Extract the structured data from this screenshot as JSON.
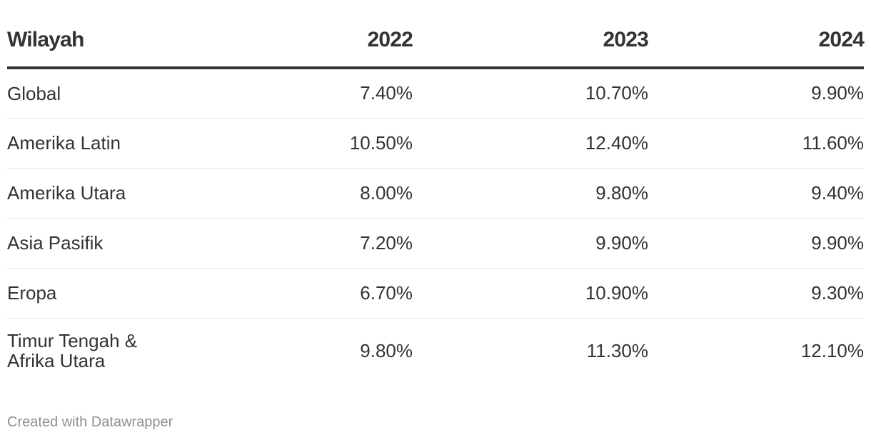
{
  "chart_data": {
    "type": "table",
    "columns": [
      "Wilayah",
      "2022",
      "2023",
      "2024"
    ],
    "rows": [
      {
        "region": "Global",
        "values": [
          "7.40%",
          "10.70%",
          "9.90%"
        ]
      },
      {
        "region": "Amerika Latin",
        "values": [
          "10.50%",
          "12.40%",
          "11.60%"
        ]
      },
      {
        "region": "Amerika Utara",
        "values": [
          "8.00%",
          "9.80%",
          "9.40%"
        ]
      },
      {
        "region": "Asia Pasifik",
        "values": [
          "7.20%",
          "9.90%",
          "9.90%"
        ]
      },
      {
        "region": "Eropa",
        "values": [
          "6.70%",
          "10.90%",
          "9.30%"
        ]
      },
      {
        "region": "Timur Tengah & Afrika Utara",
        "values": [
          "9.80%",
          "11.30%",
          "12.10%"
        ]
      }
    ]
  },
  "footer": {
    "credit": "Created with Datawrapper"
  },
  "colors": {
    "text": "#333333",
    "header_rule": "#333333",
    "row_rule": "#e5e5e5",
    "footer_text": "#909090"
  }
}
